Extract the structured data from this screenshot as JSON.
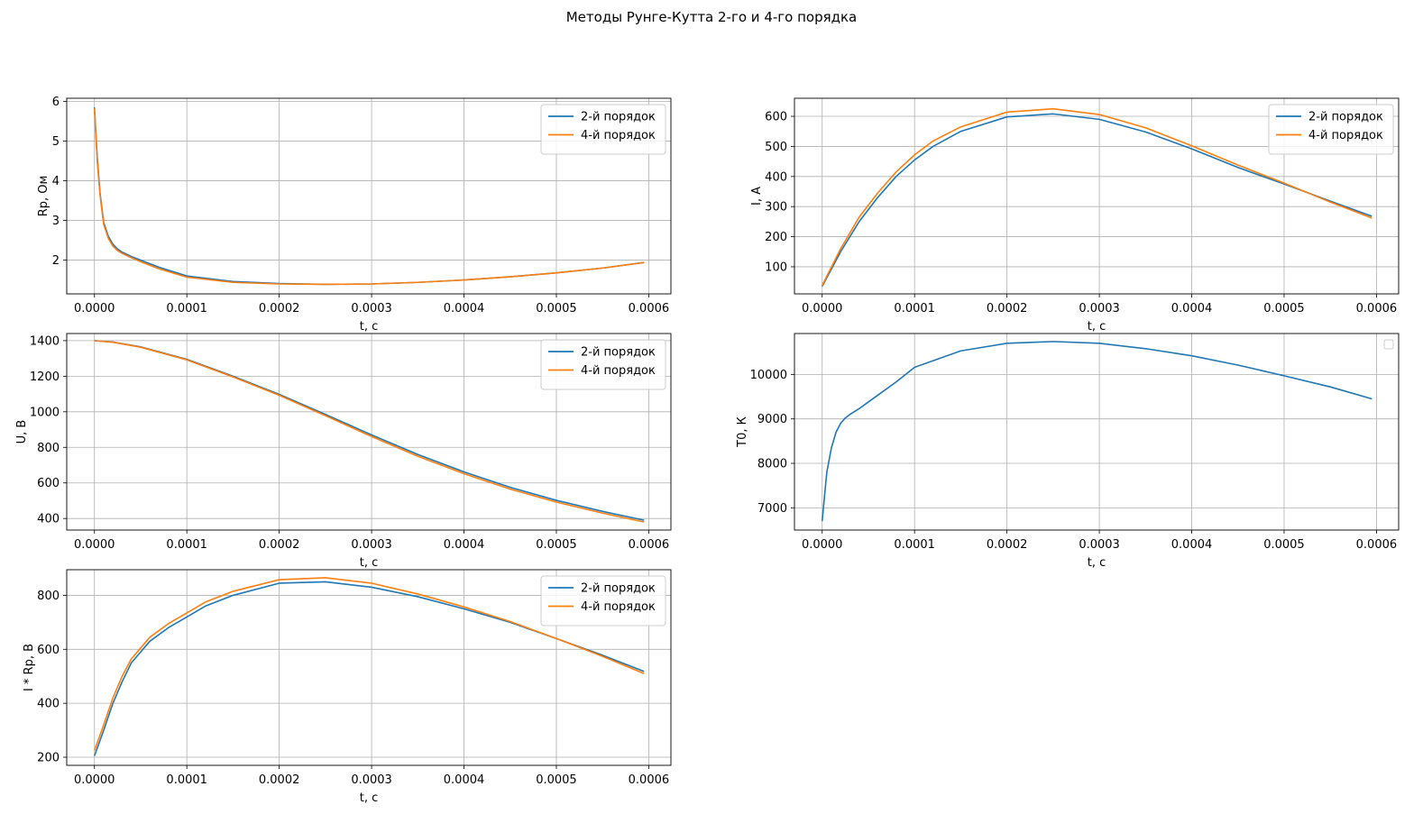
{
  "figure": {
    "title": "Методы Рунге-Кутта 2-го и 4-го порядка"
  },
  "colors": {
    "series_2nd": "#1f77b4",
    "series_4th": "#ff7f0e",
    "grid": "#b0b0b0",
    "axes": "#000000",
    "legend_border": "#cccccc"
  },
  "chart_data": [
    {
      "type": "line",
      "xlabel": "t, с",
      "ylabel": "Rp, Ом",
      "xlim": [
        -3e-05,
        0.000624
      ],
      "ylim": [
        1.15,
        6.08
      ],
      "xticks": [
        0,
        0.0001,
        0.0002,
        0.0003,
        0.0004,
        0.0005,
        0.0006
      ],
      "xtick_labels": [
        "0.0000",
        "0.0001",
        "0.0002",
        "0.0003",
        "0.0004",
        "0.0005",
        "0.0006"
      ],
      "yticks": [
        2,
        3,
        4,
        5,
        6
      ],
      "ytick_labels": [
        "2",
        "3",
        "4",
        "5",
        "6"
      ],
      "grid": true,
      "legend": "upper right",
      "series": [
        {
          "name": "2-й порядок",
          "x": [
            0,
            3e-06,
            6e-06,
            1e-05,
            1.5e-05,
            2e-05,
            2.5e-05,
            3e-05,
            4e-05,
            5e-05,
            7e-05,
            0.0001,
            0.00015,
            0.0002,
            0.00025,
            0.0003,
            0.00035,
            0.0004,
            0.00045,
            0.0005,
            0.00055,
            0.000595
          ],
          "y": [
            5.85,
            4.6,
            3.7,
            2.95,
            2.6,
            2.4,
            2.28,
            2.2,
            2.09,
            2.0,
            1.82,
            1.6,
            1.46,
            1.41,
            1.39,
            1.4,
            1.44,
            1.5,
            1.58,
            1.68,
            1.8,
            1.94
          ]
        },
        {
          "name": "4-й порядок",
          "x": [
            0,
            3e-06,
            6e-06,
            1e-05,
            1.5e-05,
            2e-05,
            2.5e-05,
            3e-05,
            4e-05,
            5e-05,
            7e-05,
            0.0001,
            0.00015,
            0.0002,
            0.00025,
            0.0003,
            0.00035,
            0.0004,
            0.00045,
            0.0005,
            0.00055,
            0.000595
          ],
          "y": [
            5.82,
            4.5,
            3.65,
            2.9,
            2.55,
            2.35,
            2.24,
            2.17,
            2.06,
            1.96,
            1.78,
            1.57,
            1.44,
            1.4,
            1.39,
            1.4,
            1.44,
            1.5,
            1.58,
            1.68,
            1.8,
            1.94
          ]
        }
      ]
    },
    {
      "type": "line",
      "xlabel": "t, с",
      "ylabel": "I, А",
      "xlim": [
        -3e-05,
        0.000624
      ],
      "ylim": [
        10,
        660
      ],
      "xticks": [
        0,
        0.0001,
        0.0002,
        0.0003,
        0.0004,
        0.0005,
        0.0006
      ],
      "xtick_labels": [
        "0.0000",
        "0.0001",
        "0.0002",
        "0.0003",
        "0.0004",
        "0.0005",
        "0.0006"
      ],
      "yticks": [
        100,
        200,
        300,
        400,
        500,
        600
      ],
      "ytick_labels": [
        "100",
        "200",
        "300",
        "400",
        "500",
        "600"
      ],
      "grid": true,
      "legend": "upper right",
      "series": [
        {
          "name": "2-й порядок",
          "x": [
            0,
            2e-05,
            4e-05,
            6e-05,
            8e-05,
            0.0001,
            0.00012,
            0.00015,
            0.0002,
            0.00025,
            0.0003,
            0.00035,
            0.0004,
            0.00045,
            0.0005,
            0.00055,
            0.000595
          ],
          "y": [
            35,
            150,
            250,
            330,
            400,
            455,
            500,
            550,
            598,
            608,
            590,
            548,
            492,
            430,
            375,
            318,
            268
          ]
        },
        {
          "name": "4-й порядок",
          "x": [
            0,
            2e-05,
            4e-05,
            6e-05,
            8e-05,
            0.0001,
            0.00012,
            0.00015,
            0.0002,
            0.00025,
            0.0003,
            0.00035,
            0.0004,
            0.00045,
            0.0005,
            0.00055,
            0.000595
          ],
          "y": [
            38,
            160,
            265,
            345,
            415,
            472,
            518,
            565,
            614,
            625,
            606,
            562,
            502,
            438,
            378,
            315,
            262
          ]
        }
      ]
    },
    {
      "type": "line",
      "xlabel": "t, с",
      "ylabel": "U, В",
      "xlim": [
        -3e-05,
        0.000624
      ],
      "ylim": [
        335,
        1440
      ],
      "xticks": [
        0,
        0.0001,
        0.0002,
        0.0003,
        0.0004,
        0.0005,
        0.0006
      ],
      "xtick_labels": [
        "0.0000",
        "0.0001",
        "0.0002",
        "0.0003",
        "0.0004",
        "0.0005",
        "0.0006"
      ],
      "yticks": [
        400,
        600,
        800,
        1000,
        1200,
        1400
      ],
      "ytick_labels": [
        "400",
        "600",
        "800",
        "1000",
        "1200",
        "1400"
      ],
      "grid": true,
      "legend": "upper right",
      "series": [
        {
          "name": "2-й порядок",
          "x": [
            0,
            2e-05,
            5e-05,
            0.0001,
            0.00015,
            0.0002,
            0.00025,
            0.0003,
            0.00035,
            0.0004,
            0.00045,
            0.0005,
            0.00055,
            0.000595
          ],
          "y": [
            1400,
            1392,
            1365,
            1295,
            1200,
            1098,
            985,
            870,
            760,
            662,
            575,
            502,
            440,
            390
          ]
        },
        {
          "name": "4-й порядок",
          "x": [
            0,
            2e-05,
            5e-05,
            0.0001,
            0.00015,
            0.0002,
            0.00025,
            0.0003,
            0.00035,
            0.0004,
            0.00045,
            0.0005,
            0.00055,
            0.000595
          ],
          "y": [
            1400,
            1391,
            1363,
            1292,
            1196,
            1093,
            978,
            861,
            750,
            652,
            565,
            492,
            430,
            380
          ]
        }
      ]
    },
    {
      "type": "line",
      "xlabel": "t, с",
      "ylabel": "T0, К",
      "xlim": [
        -3e-05,
        0.000624
      ],
      "ylim": [
        6500,
        10920
      ],
      "xticks": [
        0,
        0.0001,
        0.0002,
        0.0003,
        0.0004,
        0.0005,
        0.0006
      ],
      "xtick_labels": [
        "0.0000",
        "0.0001",
        "0.0002",
        "0.0003",
        "0.0004",
        "0.0005",
        "0.0006"
      ],
      "yticks": [
        7000,
        8000,
        9000,
        10000
      ],
      "ytick_labels": [
        "7000",
        "8000",
        "9000",
        "10000"
      ],
      "grid": true,
      "legend": "upper right",
      "series": [
        {
          "x": [
            0,
            5e-06,
            1e-05,
            1.5e-05,
            2e-05,
            2.5e-05,
            3e-05,
            4e-05,
            5e-05,
            6e-05,
            8e-05,
            0.0001,
            0.00015,
            0.0002,
            0.00025,
            0.0003,
            0.00035,
            0.0004,
            0.00045,
            0.0005,
            0.00055,
            0.000595
          ],
          "y": [
            6700,
            7800,
            8350,
            8700,
            8900,
            9020,
            9100,
            9230,
            9380,
            9530,
            9830,
            10160,
            10530,
            10700,
            10740,
            10700,
            10580,
            10420,
            10210,
            9970,
            9720,
            9450
          ]
        }
      ]
    },
    {
      "type": "line",
      "xlabel": "t, с",
      "ylabel": "I * Rp, В",
      "xlim": [
        -3e-05,
        0.000624
      ],
      "ylim": [
        170,
        895
      ],
      "xticks": [
        0,
        0.0001,
        0.0002,
        0.0003,
        0.0004,
        0.0005,
        0.0006
      ],
      "xtick_labels": [
        "0.0000",
        "0.0001",
        "0.0002",
        "0.0003",
        "0.0004",
        "0.0005",
        "0.0006"
      ],
      "yticks": [
        200,
        400,
        600,
        800
      ],
      "ytick_labels": [
        "200",
        "400",
        "600",
        "800"
      ],
      "grid": true,
      "legend": "upper right",
      "series": [
        {
          "name": "2-й порядок",
          "x": [
            0,
            1e-05,
            2e-05,
            3e-05,
            4e-05,
            5e-05,
            6e-05,
            8e-05,
            0.0001,
            0.00012,
            0.00015,
            0.0002,
            0.00025,
            0.0003,
            0.00035,
            0.0004,
            0.00045,
            0.0005,
            0.00055,
            0.000595
          ],
          "y": [
            205,
            300,
            400,
            480,
            550,
            590,
            630,
            680,
            720,
            760,
            800,
            845,
            850,
            830,
            795,
            750,
            700,
            640,
            578,
            518
          ]
        },
        {
          "name": "4-й порядок",
          "x": [
            0,
            1e-05,
            2e-05,
            3e-05,
            4e-05,
            5e-05,
            6e-05,
            8e-05,
            0.0001,
            0.00012,
            0.00015,
            0.0002,
            0.00025,
            0.0003,
            0.00035,
            0.0004,
            0.00045,
            0.0005,
            0.00055,
            0.000595
          ],
          "y": [
            225,
            320,
            420,
            500,
            565,
            605,
            645,
            695,
            735,
            775,
            815,
            858,
            865,
            845,
            805,
            757,
            703,
            640,
            574,
            510
          ]
        }
      ]
    }
  ]
}
